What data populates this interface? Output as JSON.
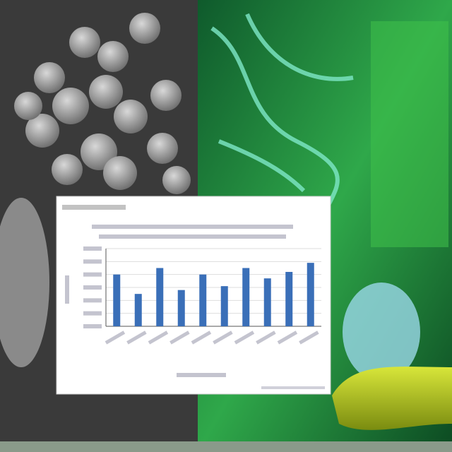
{
  "chart_data": {
    "type": "bar",
    "categories": [
      null,
      null,
      null,
      null,
      null,
      null,
      null,
      null,
      null,
      null
    ],
    "values": [
      4.0,
      2.5,
      4.5,
      2.8,
      4.0,
      3.1,
      4.5,
      3.7,
      4.2,
      4.9
    ],
    "color": "#3a6fb8",
    "ylim": [
      0,
      6
    ],
    "yticks": [
      0,
      1,
      2,
      3,
      4,
      5,
      6
    ],
    "grid": true
  }
}
